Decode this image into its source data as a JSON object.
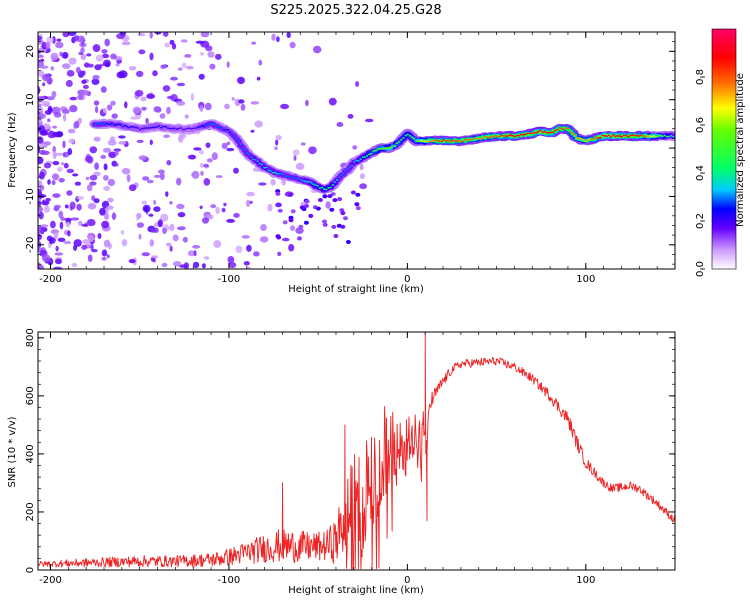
{
  "chart_data": [
    {
      "type": "heatmap",
      "title": "S225.2025.322.04.25.G28",
      "xlabel": "Height of straight line (km)",
      "ylabel": "Frequency (Hz)",
      "xlim": [
        -207,
        150
      ],
      "ylim": [
        -25,
        24
      ],
      "xticks": [
        -200,
        -100,
        0,
        100
      ],
      "yticks": [
        -20,
        -10,
        0,
        10,
        20
      ],
      "xtick_labels": [
        "-200",
        "-100",
        "0",
        "100"
      ],
      "ytick_labels": [
        "-20",
        "-10",
        "0",
        "10",
        "20"
      ],
      "ridge": {
        "x": [
          -175,
          -165,
          -150,
          -140,
          -130,
          -120,
          -110,
          -100,
          -95,
          -90,
          -85,
          -80,
          -75,
          -70,
          -65,
          -60,
          -55,
          -50,
          -46,
          -43,
          -40,
          -38,
          -35,
          -32,
          -30,
          -25,
          -20,
          -15,
          -10,
          -5,
          0,
          5,
          10,
          20,
          30,
          40,
          50,
          60,
          70,
          75,
          80,
          85,
          90,
          95,
          100,
          105,
          110,
          120,
          130,
          140,
          150
        ],
        "y": [
          5,
          5,
          4,
          4.5,
          4,
          4,
          5,
          3.5,
          1.5,
          -1,
          -2.5,
          -4,
          -5,
          -5.5,
          -6,
          -6.5,
          -7,
          -8,
          -8.5,
          -8,
          -7,
          -6,
          -5,
          -4,
          -3,
          -2,
          -1,
          0,
          0,
          1,
          3,
          1.5,
          1.5,
          1.5,
          1.5,
          2,
          2.5,
          2.5,
          3,
          3.5,
          3,
          4,
          4,
          2,
          1.5,
          2,
          2.5,
          2.5,
          2.5,
          2.5,
          2.5
        ],
        "amplitude": [
          0.3,
          0.25,
          0.2,
          0.22,
          0.2,
          0.18,
          0.3,
          0.25,
          0.3,
          0.3,
          0.32,
          0.35,
          0.35,
          0.3,
          0.28,
          0.3,
          0.35,
          0.4,
          0.45,
          0.42,
          0.35,
          0.3,
          0.3,
          0.3,
          0.32,
          0.4,
          0.5,
          0.55,
          0.6,
          0.5,
          0.45,
          0.55,
          0.7,
          0.85,
          0.8,
          0.75,
          0.8,
          0.9,
          0.85,
          0.95,
          0.9,
          0.85,
          0.8,
          0.75,
          0.7,
          0.8,
          0.95,
          0.9,
          0.85,
          0.6,
          0.3
        ]
      },
      "colorbar": {
        "label": "Normalized spectral amplitude",
        "ticks": [
          0.0,
          0.2,
          0.4,
          0.6,
          0.8
        ],
        "tick_labels": [
          "0.0",
          "0.2",
          "0.4",
          "0.6",
          "0.8"
        ],
        "range": [
          0,
          1
        ]
      }
    },
    {
      "type": "line",
      "xlabel": "Height of straight line (km)",
      "ylabel": "SNR (10 * v/v)",
      "xlim": [
        -207,
        150
      ],
      "ylim": [
        0,
        820
      ],
      "xticks": [
        -200,
        -100,
        0,
        100
      ],
      "yticks": [
        0,
        200,
        400,
        600,
        800
      ],
      "xtick_labels": [
        "-200",
        "-100",
        "0",
        "100"
      ],
      "ytick_labels": [
        "0",
        "200",
        "400",
        "600",
        "800"
      ],
      "color": "#ee2222",
      "series": [
        {
          "name": "SNR",
          "x": [
            -207,
            -180,
            -150,
            -130,
            -110,
            -100,
            -90,
            -80,
            -70,
            -60,
            -50,
            -45,
            -40,
            -38,
            -35,
            -30,
            -25,
            -20,
            -15,
            -10,
            -5,
            0,
            5,
            8,
            10,
            11,
            12,
            15,
            20,
            25,
            30,
            40,
            50,
            60,
            70,
            80,
            90,
            95,
            100,
            110,
            115,
            120,
            125,
            130,
            140,
            150
          ],
          "mean": [
            20,
            25,
            30,
            30,
            35,
            45,
            60,
            75,
            85,
            80,
            80,
            85,
            100,
            130,
            170,
            230,
            270,
            330,
            390,
            410,
            390,
            440,
            500,
            400,
            540,
            300,
            560,
            600,
            650,
            690,
            710,
            715,
            720,
            700,
            660,
            600,
            520,
            440,
            370,
            300,
            280,
            285,
            290,
            280,
            230,
            170
          ],
          "noise": [
            10,
            15,
            20,
            20,
            25,
            30,
            40,
            50,
            60,
            55,
            50,
            55,
            80,
            100,
            130,
            170,
            200,
            220,
            200,
            160,
            120,
            110,
            80,
            140,
            60,
            120,
            40,
            25,
            20,
            15,
            15,
            15,
            15,
            15,
            15,
            20,
            25,
            25,
            20,
            15,
            15,
            15,
            15,
            15,
            15,
            15
          ],
          "spikes": [
            {
              "x": 10,
              "y": 820
            },
            {
              "x": 11,
              "y": 170
            },
            {
              "x": -70,
              "y": 300
            },
            {
              "x": -35,
              "y": 500
            }
          ]
        }
      ]
    }
  ]
}
